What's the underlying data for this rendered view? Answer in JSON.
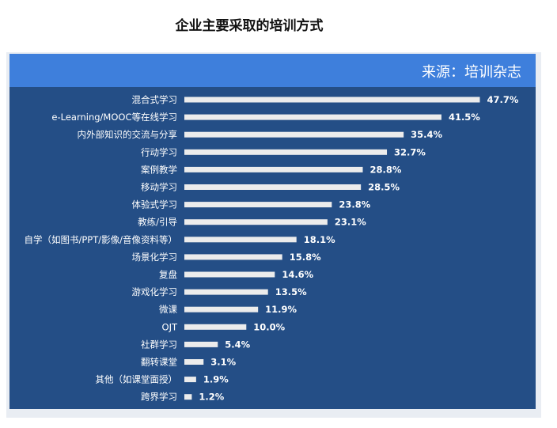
{
  "title": "企业主要采取的培训方式",
  "source": "来源：培训杂志",
  "colors": {
    "panel": "#244e86",
    "source_bar": "#3e7fdc",
    "bar": "#ececec",
    "text": "#ffffff"
  },
  "chart_data": {
    "type": "bar",
    "orientation": "horizontal",
    "title": "企业主要采取的培训方式",
    "categories": [
      "混合式学习",
      "e-Learning/MOOC等在线学习",
      "内外部知识的交流与分享",
      "行动学习",
      "案例教学",
      "移动学习",
      "体验式学习",
      "教练/引导",
      "自学（如图书/PPT/影像/音像资料等）",
      "场景化学习",
      "复盘",
      "游戏化学习",
      "微课",
      "OJT",
      "社群学习",
      "翻转课堂",
      "其他（如课堂面授）",
      "跨界学习"
    ],
    "values": [
      47.7,
      41.5,
      35.4,
      32.7,
      28.8,
      28.5,
      23.8,
      23.1,
      18.1,
      15.8,
      14.6,
      13.5,
      11.9,
      10.0,
      5.4,
      3.1,
      1.9,
      1.2
    ],
    "value_labels": [
      "47.7%",
      "41.5%",
      "35.4%",
      "32.7%",
      "28.8%",
      "28.5%",
      "23.8%",
      "23.1%",
      "18.1%",
      "15.8%",
      "14.6%",
      "13.5%",
      "11.9%",
      "10.0%",
      "5.4%",
      "3.1%",
      "1.9%",
      "1.2%"
    ],
    "unit": "%",
    "xlim": [
      0,
      50
    ],
    "grid": false,
    "legend": "none"
  }
}
